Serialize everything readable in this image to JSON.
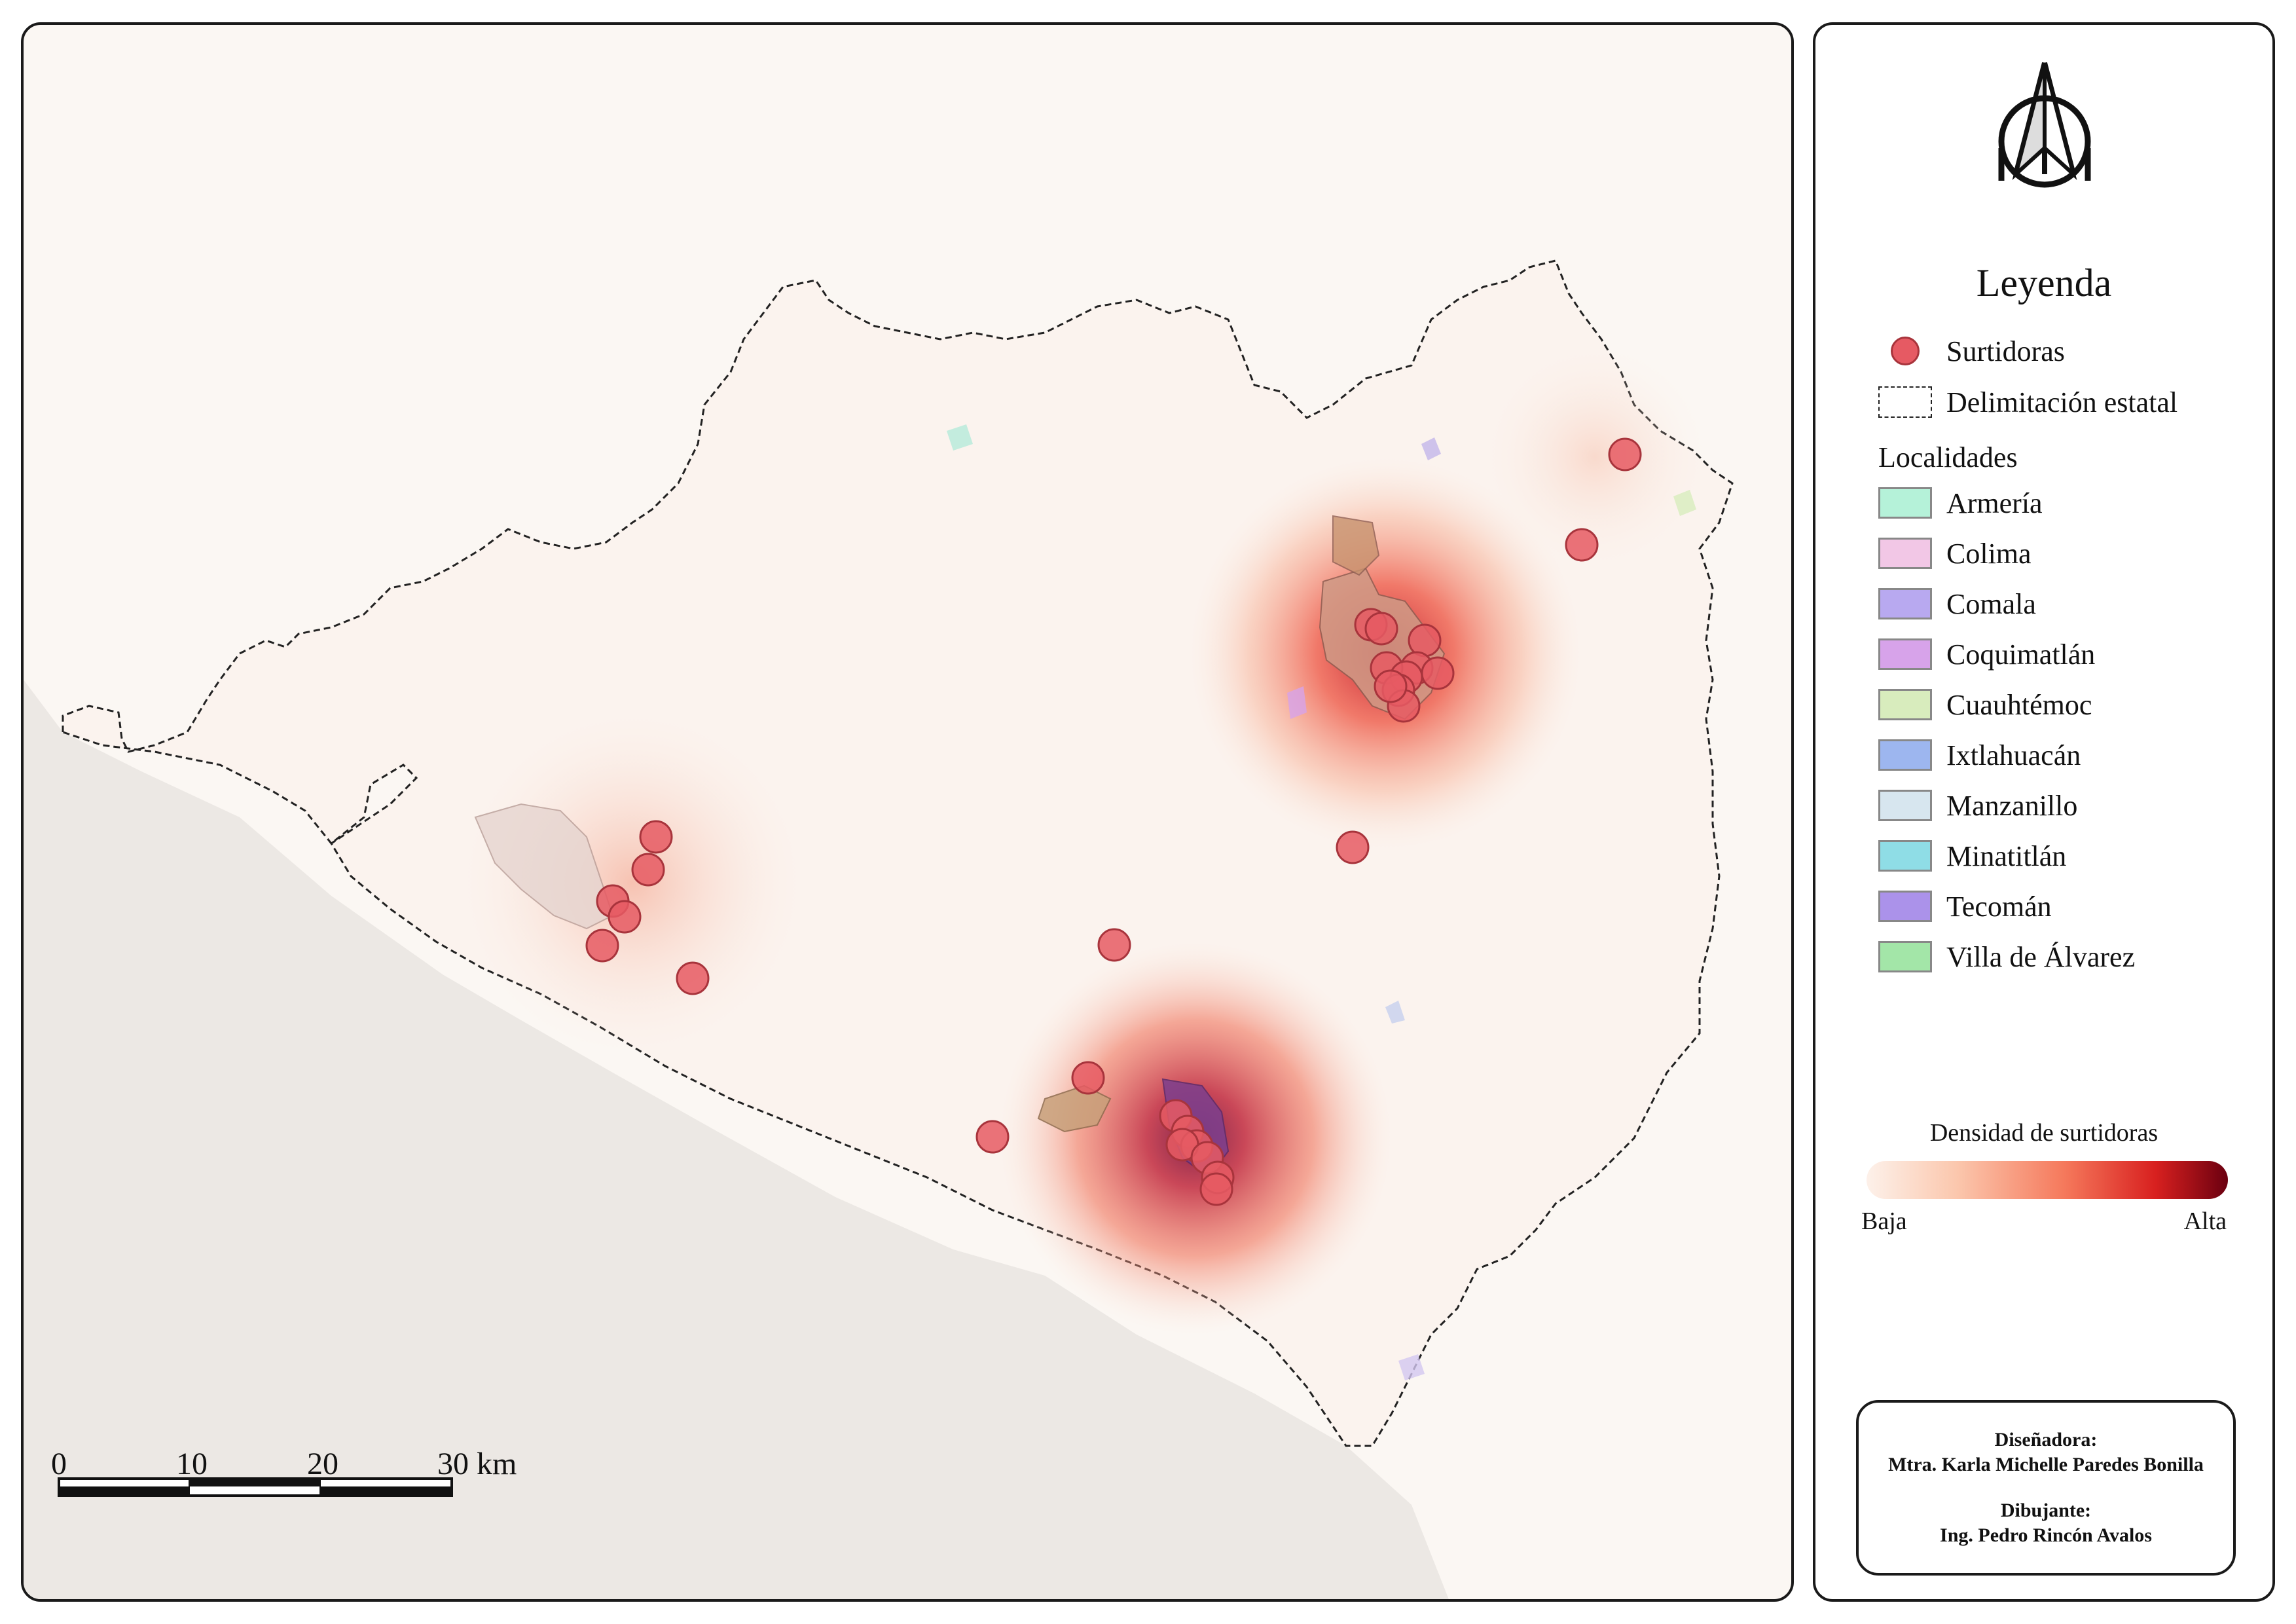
{
  "legend": {
    "title": "Leyenda",
    "items": [
      {
        "label": "Surtidoras",
        "symbol": "point",
        "color": "#e65a63"
      },
      {
        "label": "Delimitación estatal",
        "symbol": "dashed-outline",
        "color": "#222222"
      }
    ],
    "localities_title": "Localidades",
    "localities": [
      {
        "label": "Armería",
        "color": "#b5f2d9"
      },
      {
        "label": "Colima",
        "color": "#f2c7e6"
      },
      {
        "label": "Comala",
        "color": "#b8a9f0"
      },
      {
        "label": "Coquimatlán",
        "color": "#d7a3ea"
      },
      {
        "label": "Cuauhtémoc",
        "color": "#d8ecbd"
      },
      {
        "label": "Ixtlahuacán",
        "color": "#9db6ef"
      },
      {
        "label": "Manzanillo",
        "color": "#d7e6ef"
      },
      {
        "label": "Minatitlán",
        "color": "#8fdde6"
      },
      {
        "label": "Tecomán",
        "color": "#ab92ea"
      },
      {
        "label": "Villa de Álvarez",
        "color": "#a3e6a8"
      }
    ],
    "density": {
      "title": "Densidad de surtidoras",
      "low": "Baja",
      "high": "Alta"
    },
    "north_arrow": "north-arrow-icon"
  },
  "credits": {
    "designer_title": "Diseñadora:",
    "designer_name": "Mtra. Karla Michelle Paredes Bonilla",
    "drafter_title": "Dibujante:",
    "drafter_name": "Ing. Pedro Rincón Avalos"
  },
  "scale_bar": {
    "labels": [
      "0",
      "10",
      "20",
      "30 km"
    ]
  },
  "colors": {
    "sea": "#ece8e4",
    "land": "#fbf7f3",
    "surtidora": "#e65a63",
    "surtidora_stroke": "#a8343c",
    "border": "#222222"
  }
}
